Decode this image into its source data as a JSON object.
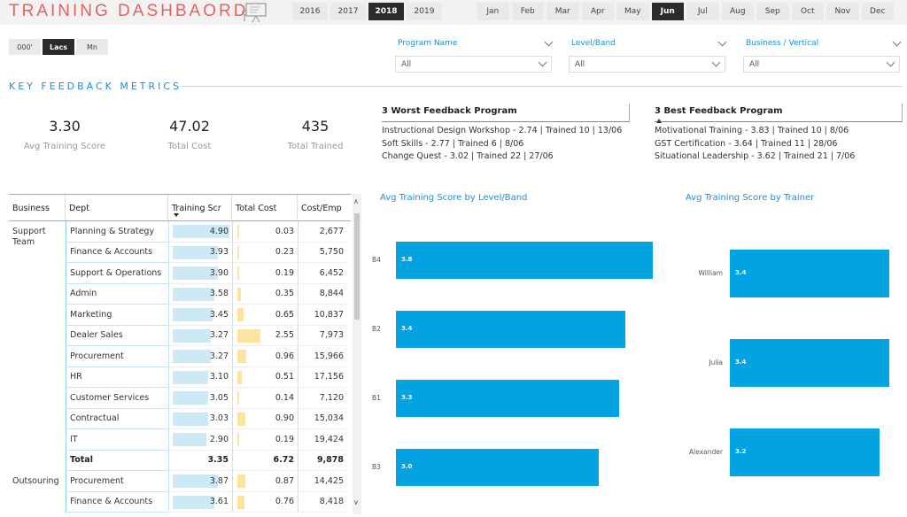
{
  "header": {
    "title": "TRAINING DASHBAORD",
    "icon": "training-board-icon",
    "years": [
      "2016",
      "2017",
      "2018",
      "2019"
    ],
    "selected_year": "2018",
    "months": [
      "Jan",
      "Feb",
      "Mar",
      "Apr",
      "May",
      "Jun",
      "Jul",
      "Aug",
      "Sep",
      "Oct",
      "Nov",
      "Dec"
    ],
    "selected_month": "Jun"
  },
  "units": {
    "options": [
      "000'",
      "Lacs",
      "Mn"
    ],
    "selected": "Lacs"
  },
  "filters": [
    {
      "label": "Program Name",
      "value": "All"
    },
    {
      "label": "Level/Band",
      "value": "All"
    },
    {
      "label": "Business / Vertical",
      "value": "All"
    }
  ],
  "section_title": "KEY FEEDBACK METRICS",
  "kpis": [
    {
      "value": "3.30",
      "label": "Avg Training Score"
    },
    {
      "value": "47.02",
      "label": "Total Cost"
    },
    {
      "value": "435",
      "label": "Total Trained"
    }
  ],
  "worst_feedback": {
    "title": "3 Worst Feedback Program",
    "items": [
      "Instructional Design Workshop - 2.74 | Trained 10 | 13/06",
      "Soft Skills - 2.77 | Trained 6 | 8/06",
      "Change Quest - 3.02 | Trained 22 | 27/06"
    ]
  },
  "best_feedback": {
    "title": "3 Best Feedback Program",
    "items": [
      "Motivational Training - 3.83 | Trained 10 | 8/06",
      "GST Certification - 3.64 | Trained 11 | 28/06",
      "Situational Leadership - 3.62 | Trained 21 | 7/06"
    ]
  },
  "table": {
    "columns": [
      "Business",
      "Dept",
      "Training Scr",
      "Total Cost",
      "Cost/Emp"
    ],
    "groups": [
      {
        "business": "Support Team",
        "rows": [
          {
            "dept": "Planning & Strategy",
            "score": "4.90",
            "cost": "0.03",
            "cpe": "2,677",
            "score_num": 4.9,
            "cost_num": 0.03
          },
          {
            "dept": "Finance & Accounts",
            "score": "3.93",
            "cost": "0.23",
            "cpe": "5,750",
            "score_num": 3.93,
            "cost_num": 0.23
          },
          {
            "dept": "Support & Operations",
            "score": "3.90",
            "cost": "0.19",
            "cpe": "6,452",
            "score_num": 3.9,
            "cost_num": 0.19
          },
          {
            "dept": "Admin",
            "score": "3.58",
            "cost": "0.35",
            "cpe": "8,844",
            "score_num": 3.58,
            "cost_num": 0.35
          },
          {
            "dept": "Marketing",
            "score": "3.45",
            "cost": "0.65",
            "cpe": "10,837",
            "score_num": 3.45,
            "cost_num": 0.65
          },
          {
            "dept": "Dealer Sales",
            "score": "3.27",
            "cost": "2.55",
            "cpe": "7,973",
            "score_num": 3.27,
            "cost_num": 2.55
          },
          {
            "dept": "Procurement",
            "score": "3.27",
            "cost": "0.96",
            "cpe": "15,966",
            "score_num": 3.27,
            "cost_num": 0.96
          },
          {
            "dept": "HR",
            "score": "3.10",
            "cost": "0.51",
            "cpe": "17,156",
            "score_num": 3.1,
            "cost_num": 0.51
          },
          {
            "dept": "Customer Services",
            "score": "3.05",
            "cost": "0.14",
            "cpe": "7,120",
            "score_num": 3.05,
            "cost_num": 0.14
          },
          {
            "dept": "Contractual",
            "score": "3.03",
            "cost": "0.90",
            "cpe": "15,034",
            "score_num": 3.03,
            "cost_num": 0.9
          },
          {
            "dept": "IT",
            "score": "2.90",
            "cost": "0.19",
            "cpe": "19,424",
            "score_num": 2.9,
            "cost_num": 0.19
          }
        ],
        "total": {
          "label": "Total",
          "score": "3.35",
          "cost": "6.72",
          "cpe": "9,878"
        }
      },
      {
        "business": "Outsouring",
        "rows": [
          {
            "dept": "Procurement",
            "score": "3.87",
            "cost": "0.87",
            "cpe": "14,425",
            "score_num": 3.87,
            "cost_num": 0.87
          },
          {
            "dept": "Finance & Accounts",
            "score": "3.61",
            "cost": "0.76",
            "cpe": "8,418",
            "score_num": 3.61,
            "cost_num": 0.76
          }
        ]
      }
    ]
  },
  "chart_data": [
    {
      "type": "bar",
      "orientation": "horizontal",
      "title": "Avg Training Score by Level/Band",
      "categories": [
        "B4",
        "B2",
        "B1",
        "B3"
      ],
      "values": [
        3.8,
        3.4,
        3.3,
        3.0
      ],
      "color": "#02a3e0"
    },
    {
      "type": "bar",
      "orientation": "horizontal",
      "title": "Avg Training Score by Trainer",
      "categories": [
        "William",
        "Julia",
        "Alexander"
      ],
      "values": [
        3.4,
        3.4,
        3.2
      ],
      "color": "#02a3e0"
    }
  ]
}
